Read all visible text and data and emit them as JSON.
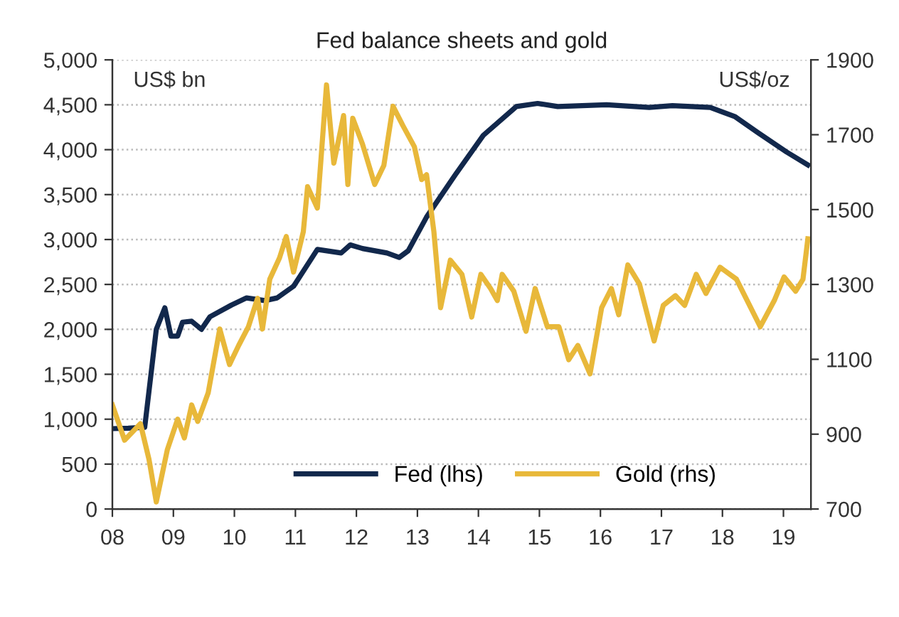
{
  "chart_data": {
    "type": "line",
    "title": "Fed balance sheets and gold",
    "ylabel": "US$ bn",
    "y2label": "US$/oz",
    "xlim": [
      2008,
      2019.45
    ],
    "xticks": [
      {
        "value": 2008,
        "label": "08"
      },
      {
        "value": 2009,
        "label": "09"
      },
      {
        "value": 2010,
        "label": "10"
      },
      {
        "value": 2011,
        "label": "11"
      },
      {
        "value": 2012,
        "label": "12"
      },
      {
        "value": 2013,
        "label": "13"
      },
      {
        "value": 2014,
        "label": "14"
      },
      {
        "value": 2015,
        "label": "15"
      },
      {
        "value": 2016,
        "label": "16"
      },
      {
        "value": 2017,
        "label": "17"
      },
      {
        "value": 2018,
        "label": "18"
      },
      {
        "value": 2019,
        "label": "19"
      }
    ],
    "ylim": [
      0,
      5000
    ],
    "yticks": [
      0,
      500,
      {
        "value": 1000,
        "label": "1,000"
      },
      {
        "value": 1500,
        "label": "1,500"
      },
      {
        "value": 2000,
        "label": "2,000"
      },
      {
        "value": 2500,
        "label": "2,500"
      },
      {
        "value": 3000,
        "label": "3,000"
      },
      {
        "value": 3500,
        "label": "3,500"
      },
      {
        "value": 4000,
        "label": "4,000"
      },
      {
        "value": 4500,
        "label": "4,500"
      },
      {
        "value": 5000,
        "label": "5,000"
      }
    ],
    "y2lim": [
      700,
      1900
    ],
    "y2ticks": [
      700,
      900,
      1100,
      1300,
      1500,
      1700,
      1900
    ],
    "grid": "y",
    "legend": "bottom right",
    "marker": "none",
    "line_style": "solid",
    "series": [
      {
        "name": "Fed (lhs)",
        "color": "#12284c",
        "x": [
          2008.0,
          2008.26,
          2008.53,
          2008.72,
          2008.86,
          2008.96,
          2009.07,
          2009.15,
          2009.3,
          2009.46,
          2009.6,
          2009.95,
          2010.2,
          2010.5,
          2010.7,
          2010.97,
          2011.36,
          2011.75,
          2011.9,
          2012.1,
          2012.5,
          2012.7,
          2012.85,
          2013.15,
          2013.62,
          2014.08,
          2014.62,
          2014.97,
          2015.3,
          2016.1,
          2016.8,
          2017.18,
          2017.8,
          2018.2,
          2018.58,
          2019.05,
          2019.4
        ],
        "values": [
          895,
          900,
          910,
          2000,
          2240,
          1925,
          1925,
          2080,
          2090,
          2000,
          2140,
          2270,
          2350,
          2320,
          2350,
          2480,
          2890,
          2850,
          2940,
          2900,
          2850,
          2800,
          2875,
          3250,
          3720,
          4160,
          4480,
          4515,
          4480,
          4500,
          4470,
          4490,
          4470,
          4370,
          4190,
          3975,
          3830
        ]
      },
      {
        "name": "Gold (rhs)",
        "color": "#e8b83a",
        "axis": "y2",
        "x": [
          2008.0,
          2008.2,
          2008.46,
          2008.6,
          2008.72,
          2008.9,
          2009.07,
          2009.18,
          2009.3,
          2009.4,
          2009.57,
          2009.76,
          2009.92,
          2010.07,
          2010.23,
          2010.38,
          2010.46,
          2010.58,
          2010.74,
          2010.85,
          2010.97,
          2011.13,
          2011.2,
          2011.36,
          2011.51,
          2011.63,
          2011.79,
          2011.86,
          2011.94,
          2012.1,
          2012.3,
          2012.45,
          2012.6,
          2012.76,
          2012.95,
          2013.07,
          2013.15,
          2013.27,
          2013.38,
          2013.54,
          2013.73,
          2013.89,
          2014.04,
          2014.2,
          2014.31,
          2014.39,
          2014.58,
          2014.78,
          2014.93,
          2015.13,
          2015.32,
          2015.48,
          2015.63,
          2015.83,
          2016.02,
          2016.18,
          2016.3,
          2016.45,
          2016.64,
          2016.88,
          2017.03,
          2017.23,
          2017.38,
          2017.57,
          2017.73,
          2017.96,
          2018.23,
          2018.62,
          2018.85,
          2019.01,
          2019.2,
          2019.32,
          2019.4
        ],
        "values": [
          978,
          884,
          928,
          833,
          719,
          858,
          940,
          890,
          978,
          934,
          1010,
          1181,
          1086,
          1137,
          1187,
          1263,
          1181,
          1314,
          1371,
          1428,
          1333,
          1441,
          1561,
          1504,
          1833,
          1624,
          1751,
          1567,
          1744,
          1675,
          1567,
          1618,
          1776,
          1725,
          1668,
          1580,
          1593,
          1441,
          1238,
          1365,
          1327,
          1213,
          1327,
          1289,
          1257,
          1327,
          1282,
          1175,
          1289,
          1187,
          1187,
          1099,
          1137,
          1061,
          1238,
          1289,
          1219,
          1352,
          1301,
          1149,
          1244,
          1270,
          1244,
          1327,
          1276,
          1346,
          1314,
          1187,
          1257,
          1320,
          1282,
          1314,
          1422
        ]
      }
    ]
  }
}
